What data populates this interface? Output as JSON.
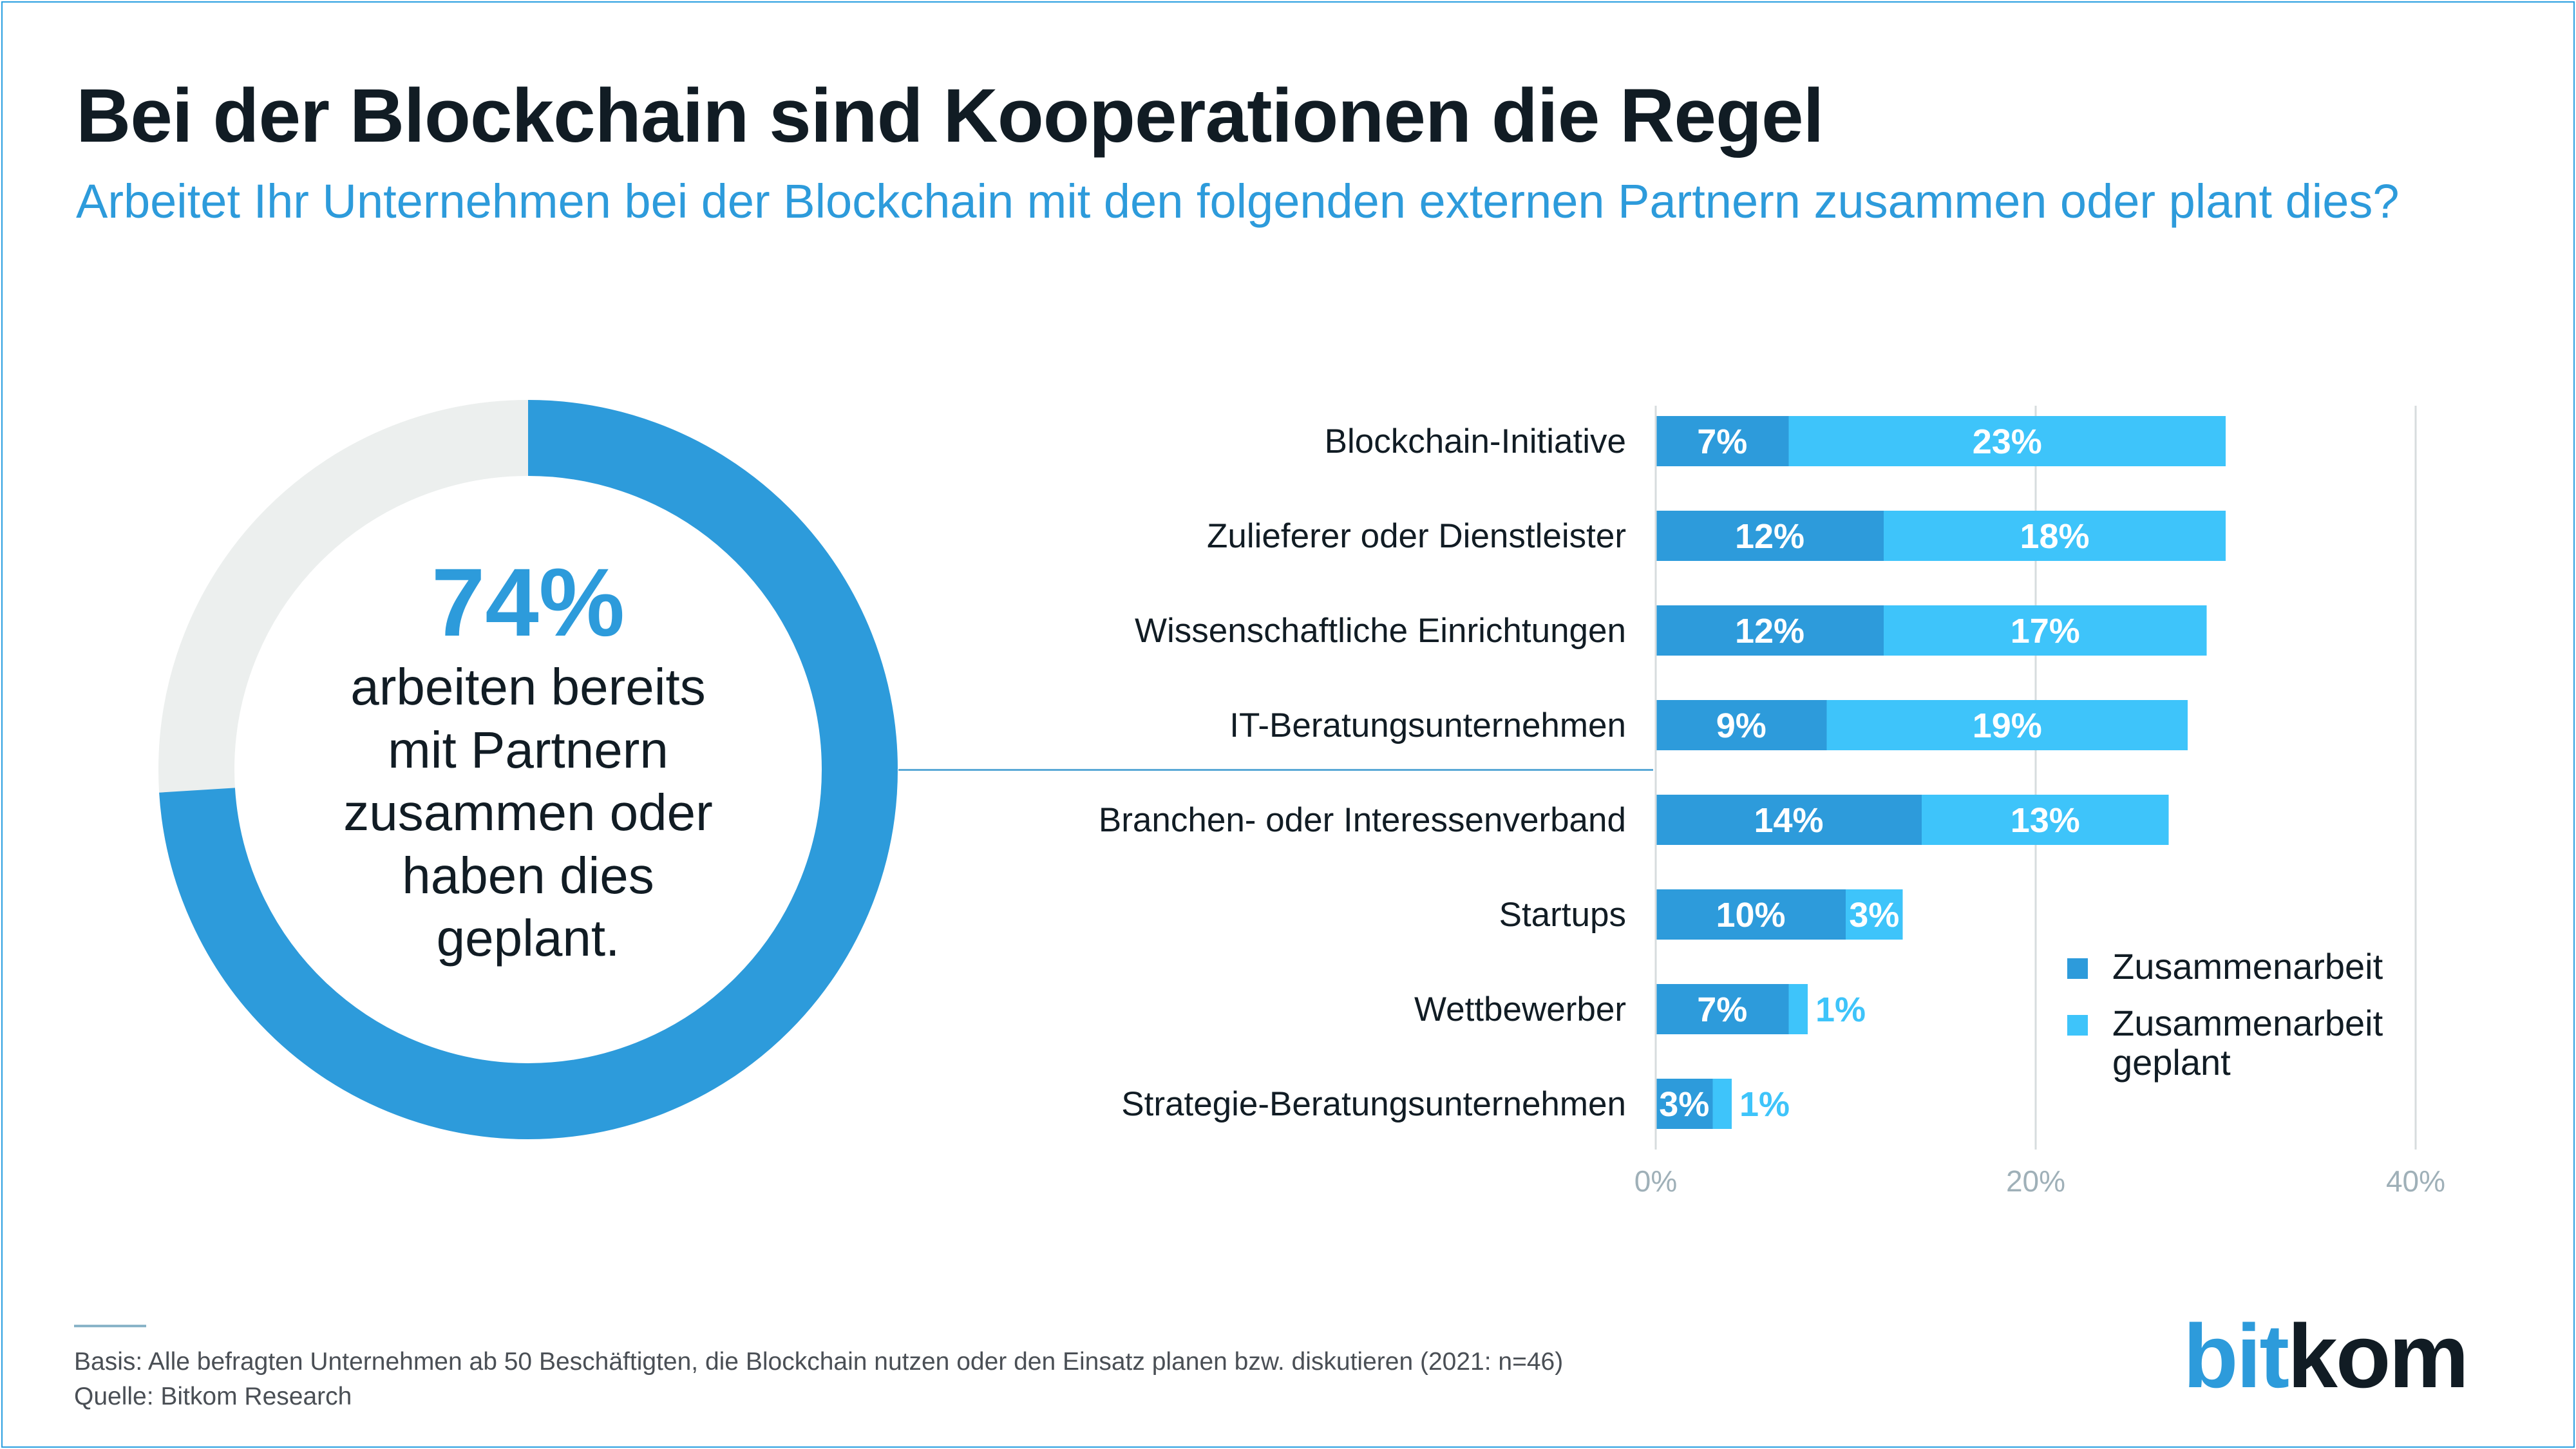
{
  "title": "Bei der Blockchain sind Kooperationen die Regel",
  "subtitle": "Arbeitet Ihr Unternehmen bei der Blockchain mit den folgenden externen Partnern zusammen oder plant dies?",
  "donut": {
    "value_label": "74%",
    "value": 74,
    "caption_lines": [
      "arbeiten bereits",
      "mit Partnern",
      "zusammen oder",
      "haben dies",
      "geplant."
    ],
    "color_main": "#2d9bdb",
    "color_rest": "#ecefee"
  },
  "legend": {
    "items": [
      {
        "label": "Zusammenarbeit",
        "color": "#2d9bdb"
      },
      {
        "label": "Zusammenarbeit geplant",
        "color": "#3ec4fa"
      }
    ]
  },
  "chart_data": {
    "type": "bar",
    "orientation": "horizontal",
    "stacked": true,
    "categories": [
      "Blockchain-Initiative",
      "Zulieferer oder Dienstleister",
      "Wissenschaftliche Einrichtungen",
      "IT-Beratungsunternehmen",
      "Branchen- oder Interessenverband",
      "Startups",
      "Wettbewerber",
      "Strategie-Beratungsunternehmen"
    ],
    "series": [
      {
        "name": "Zusammenarbeit",
        "values": [
          7,
          12,
          12,
          9,
          14,
          10,
          7,
          3
        ],
        "color": "#2d9bdb"
      },
      {
        "name": "Zusammenarbeit geplant",
        "values": [
          23,
          18,
          17,
          19,
          13,
          3,
          1,
          1
        ],
        "color": "#3ec4fa"
      }
    ],
    "xlim": [
      0,
      40
    ],
    "x_ticks": [
      "0%",
      "20%",
      "40%"
    ],
    "x_tick_values": [
      0,
      20,
      40
    ],
    "unit": "%",
    "grid": true
  },
  "footer": {
    "basis": "Basis: Alle befragten Unternehmen ab 50 Beschäftigten, die Blockchain nutzen oder den Einsatz planen bzw. diskutieren (2021: n=46)",
    "source": "Quelle: Bitkom Research"
  },
  "logo": {
    "part1": "bit",
    "part2": "kom",
    "color1": "#2d9bdb",
    "color2": "#111c24"
  }
}
